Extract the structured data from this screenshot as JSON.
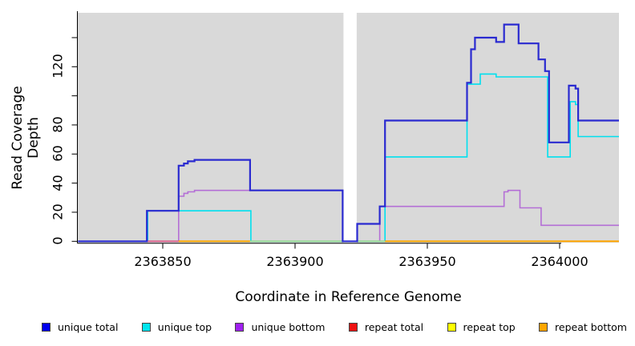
{
  "chart_data": {
    "type": "line",
    "subtype": "step-coverage",
    "title": "",
    "xlabel": "Coordinate in Reference Genome",
    "ylabel": "Read Coverage Depth",
    "plot_bg": "#D9D9D9",
    "masked_region": {
      "start": 2363918.3,
      "end": 2363923.3
    },
    "x_range": [
      2363818,
      2364022
    ],
    "y_range": [
      0,
      157
    ],
    "x_ticks": [
      {
        "v": 2363850,
        "label": "2363850"
      },
      {
        "v": 2363900,
        "label": "2363900"
      },
      {
        "v": 2363950,
        "label": "2363950"
      },
      {
        "v": 2364000,
        "label": "2364000"
      }
    ],
    "y_ticks": [
      {
        "v": 0,
        "label": "0"
      },
      {
        "v": 20,
        "label": "20"
      },
      {
        "v": 40,
        "label": "40"
      },
      {
        "v": 60,
        "label": "60"
      },
      {
        "v": 80,
        "label": "80"
      },
      {
        "v": 100,
        "label": ""
      },
      {
        "v": 120,
        "label": "120"
      },
      {
        "v": 140,
        "label": ""
      }
    ],
    "series": [
      {
        "name": "unique bottom",
        "color": "#B46FD6",
        "width": 1.6,
        "steps": [
          [
            2363818,
            0
          ],
          [
            2363856,
            31
          ],
          [
            2363858,
            33
          ],
          [
            2363859.5,
            34
          ],
          [
            2363862,
            35
          ],
          [
            2363918,
            0
          ],
          [
            2363932,
            24
          ],
          [
            2363979,
            34
          ],
          [
            2363980.5,
            35
          ],
          [
            2363985,
            23
          ],
          [
            2363993,
            11
          ],
          [
            2364022.4,
            11
          ]
        ]
      },
      {
        "name": "unique top",
        "color": "#00E0EE",
        "width": 1.6,
        "steps": [
          [
            2363818,
            0
          ],
          [
            2363844.3,
            21
          ],
          [
            2363883.3,
            0
          ],
          [
            2363934,
            58
          ],
          [
            2363965,
            108
          ],
          [
            2363970,
            115
          ],
          [
            2363976,
            113
          ],
          [
            2363995.5,
            58
          ],
          [
            2364004,
            96
          ],
          [
            2364006,
            94
          ],
          [
            2364007,
            72
          ],
          [
            2364022.4,
            72
          ]
        ]
      },
      {
        "name": "unique total",
        "color": "#2A2AD0",
        "width": 2.2,
        "steps": [
          [
            2363818,
            0
          ],
          [
            2363844,
            21
          ],
          [
            2363856,
            52
          ],
          [
            2363858,
            53.5
          ],
          [
            2363859.5,
            55
          ],
          [
            2363862,
            56
          ],
          [
            2363883,
            35
          ],
          [
            2363918,
            0
          ],
          [
            2363923.5,
            12
          ],
          [
            2363932,
            24
          ],
          [
            2363934,
            83
          ],
          [
            2363965,
            109
          ],
          [
            2363966.5,
            132
          ],
          [
            2363968,
            140
          ],
          [
            2363976,
            137
          ],
          [
            2363979,
            149
          ],
          [
            2363984.5,
            136
          ],
          [
            2363992,
            125
          ],
          [
            2363994.5,
            117
          ],
          [
            2363996,
            68
          ],
          [
            2364003.5,
            107
          ],
          [
            2364006,
            105
          ],
          [
            2364007,
            83
          ],
          [
            2364022.4,
            83
          ]
        ]
      }
    ],
    "baseline_segments": [
      {
        "name": "repeat total at zero",
        "color": "#D9648C",
        "from": 2363844,
        "to": 2363856
      },
      {
        "name": "repeat bottom at zero",
        "color": "#FFA500",
        "from": 2363856,
        "to": 2363883
      },
      {
        "name": "repeat top at zero",
        "color": "#96D896",
        "from": 2363883,
        "to": 2363918
      },
      {
        "name": "repeat top at zero",
        "color": "#96D896",
        "from": 2363923.5,
        "to": 2363934
      },
      {
        "name": "repeat bottom at zero",
        "color": "#FFA500",
        "from": 2363934,
        "to": 2364022.4
      }
    ],
    "legend_position": "bottom"
  },
  "legend": {
    "items": [
      {
        "label": "unique total",
        "color": "#0000EE"
      },
      {
        "label": "unique top",
        "color": "#00E5EE"
      },
      {
        "label": "unique bottom",
        "color": "#A020F0"
      },
      {
        "label": "repeat total",
        "color": "#EE1111"
      },
      {
        "label": "repeat top",
        "color": "#FFFF00"
      },
      {
        "label": "repeat bottom",
        "color": "#FFA500"
      }
    ]
  }
}
